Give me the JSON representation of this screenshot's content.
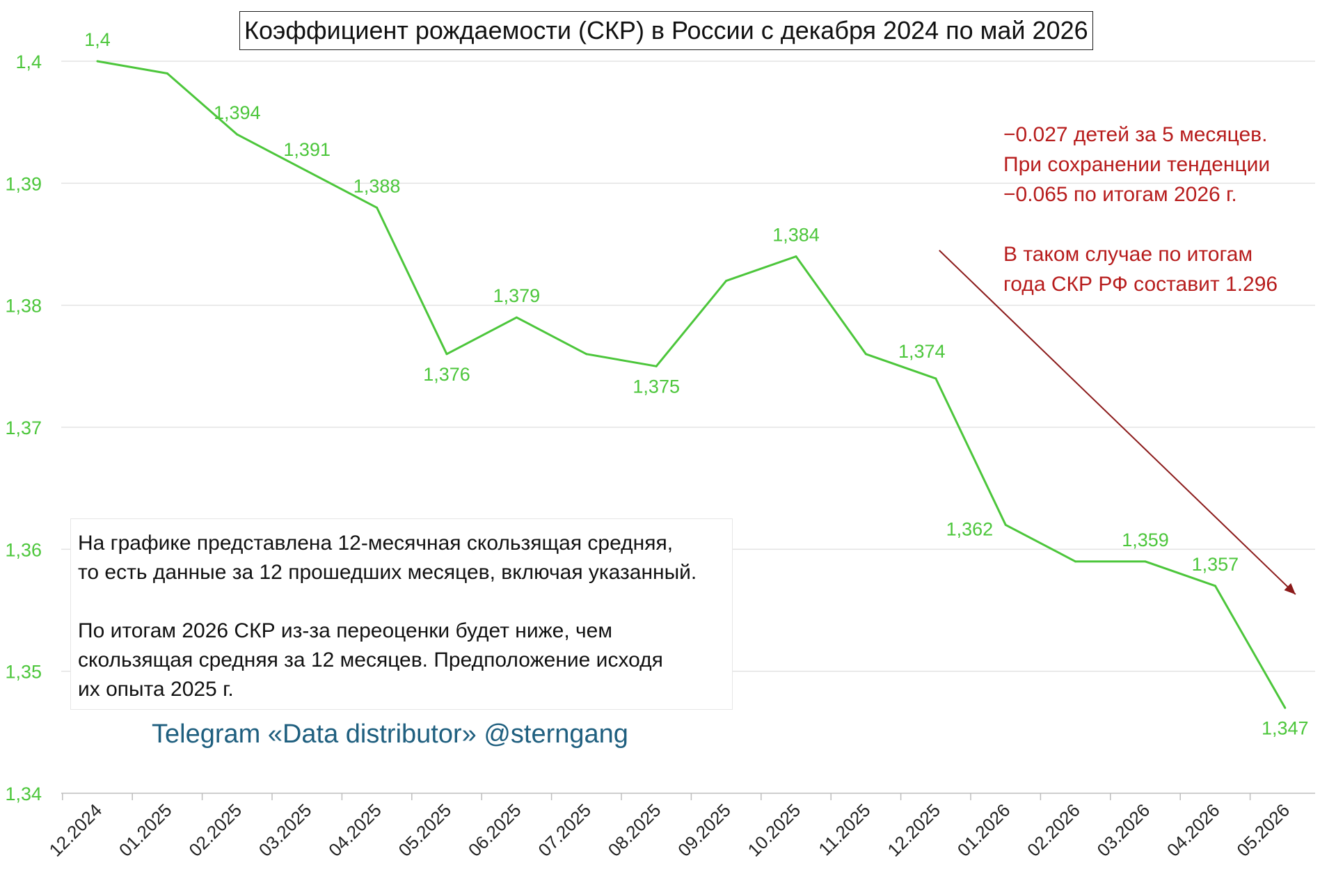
{
  "chart_data": {
    "type": "line",
    "title": "Коэффициент рождаемости (СКР) в России с декабря 2024 по май 2026",
    "categories": [
      "12.2024",
      "01.2025",
      "02.2025",
      "03.2025",
      "04.2025",
      "05.2025",
      "06.2025",
      "07.2025",
      "08.2025",
      "09.2025",
      "10.2025",
      "11.2025",
      "12.2025",
      "01.2026",
      "02.2026",
      "03.2026",
      "04.2026",
      "05.2026"
    ],
    "series": [
      {
        "values": [
          1.4,
          1.399,
          1.394,
          1.391,
          1.388,
          1.376,
          1.379,
          1.376,
          1.375,
          1.382,
          1.384,
          1.376,
          1.374,
          1.362,
          1.359,
          1.359,
          1.357,
          1.347
        ],
        "color": "#4cc63b"
      }
    ],
    "data_labels": [
      {
        "index": 0,
        "text": "1,4",
        "position": "above"
      },
      {
        "index": 2,
        "text": "1,394",
        "position": "above"
      },
      {
        "index": 3,
        "text": "1,391",
        "position": "above"
      },
      {
        "index": 4,
        "text": "1,388",
        "position": "above"
      },
      {
        "index": 5,
        "text": "1,376",
        "position": "below"
      },
      {
        "index": 6,
        "text": "1,379",
        "position": "above"
      },
      {
        "index": 8,
        "text": "1,375",
        "position": "below"
      },
      {
        "index": 10,
        "text": "1,384",
        "position": "above"
      },
      {
        "index": 12,
        "text": "1,374",
        "position": "above-left"
      },
      {
        "index": 13,
        "text": "1,362",
        "position": "left"
      },
      {
        "index": 15,
        "text": "1,359",
        "position": "above"
      },
      {
        "index": 16,
        "text": "1,357",
        "position": "above"
      },
      {
        "index": 17,
        "text": "1,347",
        "position": "below"
      }
    ],
    "y_ticks": [
      "1,34",
      "1,35",
      "1,36",
      "1,37",
      "1,38",
      "1,39",
      "1,4"
    ],
    "y_tick_values": [
      1.34,
      1.35,
      1.36,
      1.37,
      1.38,
      1.39,
      1.4
    ],
    "ylim": [
      1.34,
      1.4
    ],
    "grid": "horizontal",
    "legend": "none",
    "axis_label_color": "#4cc63b",
    "trend_arrow": {
      "from_index": 12.05,
      "from_value": 1.3845,
      "to_index": 17.15,
      "to_value": 1.3563,
      "color": "#8b1a1a"
    }
  },
  "notes": {
    "methodology": "На графике представлена 12-месячная скользящая средняя,\nто есть данные за 12 прошедших месяцев, включая указанный.",
    "assumption": "По итогам 2026 СКР из-за переоценки будет ниже, чем\nскользящая средняя за 12 месяцев. Предположение исходя\nих опыта 2025 г."
  },
  "forecast": {
    "line1": "−0.027 детей за 5 месяцев.\nПри сохранении тенденции\n−0.065 по итогам 2026 г.",
    "line2": "В таком случае по итогам\nгода СКР РФ составит 1.296"
  },
  "credit": "Telegram «Data distributor» @sterngang"
}
